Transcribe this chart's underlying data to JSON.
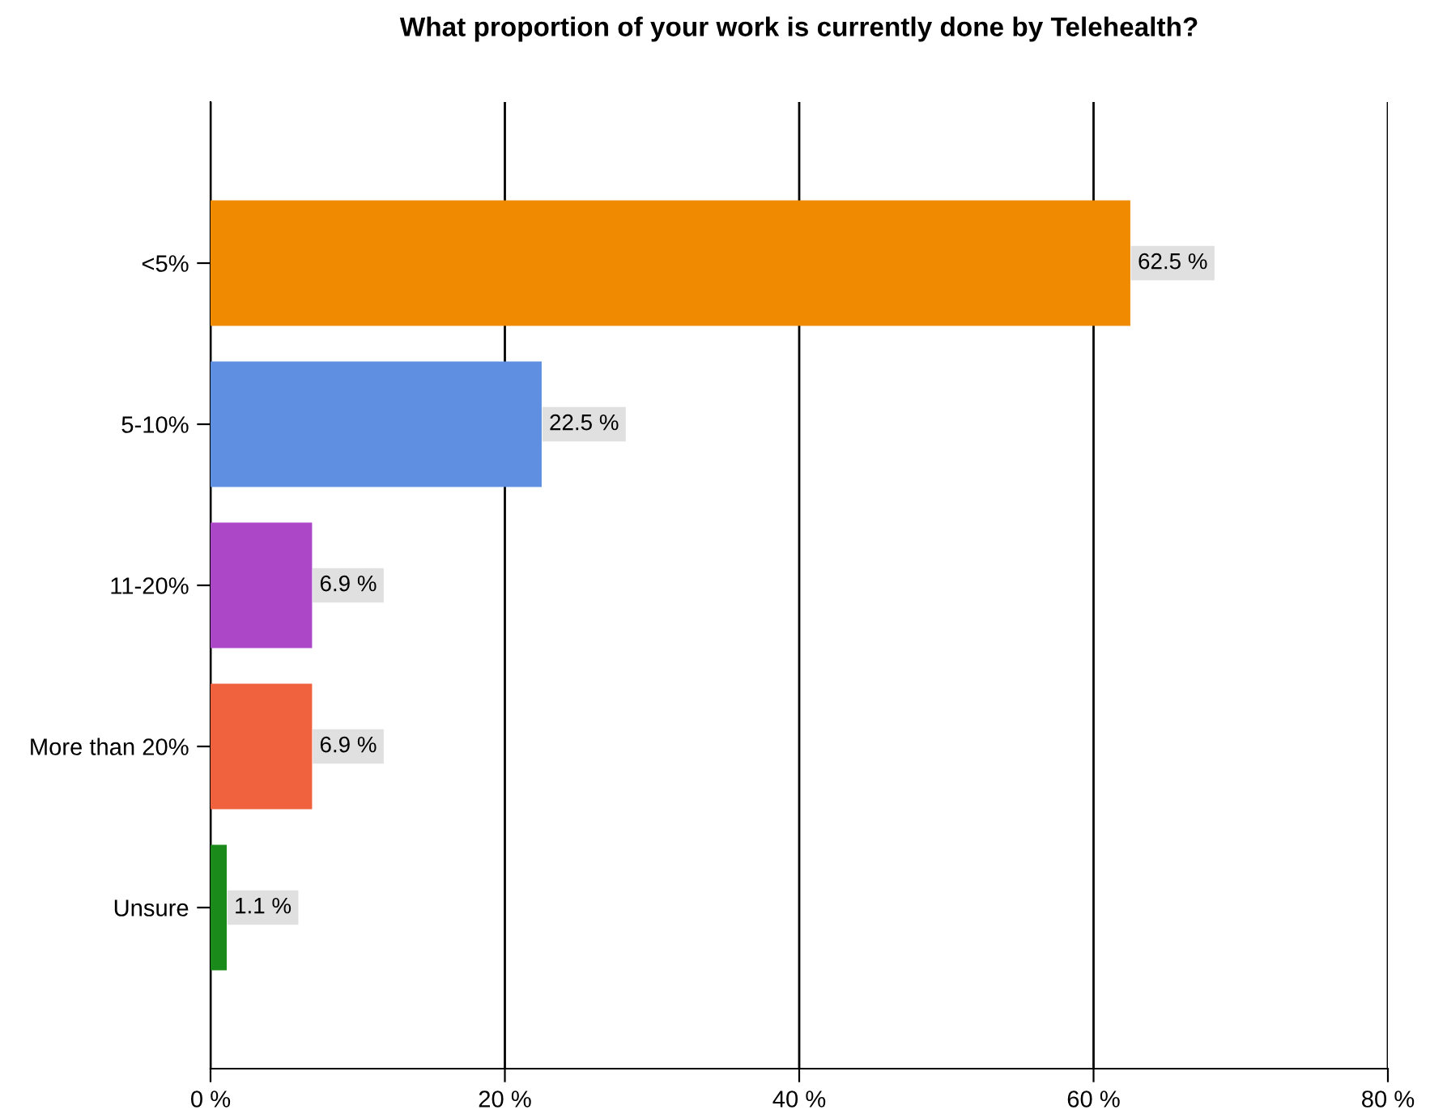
{
  "chart_data": {
    "type": "bar",
    "orientation": "horizontal",
    "title": "What proportion of your work is currently done by Telehealth?",
    "categories": [
      "<5%",
      "5-10%",
      "11-20%",
      "More than 20%",
      "Unsure"
    ],
    "values": [
      62.5,
      22.5,
      6.9,
      6.9,
      1.1
    ],
    "colors": [
      "#f08a00",
      "#5f8fe0",
      "#ac48c8",
      "#f0623e",
      "#1a8a1a"
    ],
    "value_labels": [
      "62.5 %",
      "22.5 %",
      "6.9 %",
      "6.9 %",
      "1.1 %"
    ],
    "xlim": [
      0,
      80
    ],
    "xticks": [
      {
        "value": 0,
        "label": "0 %"
      },
      {
        "value": 20,
        "label": "20 %"
      },
      {
        "value": 40,
        "label": "40 %"
      },
      {
        "value": 60,
        "label": "60 %"
      },
      {
        "value": 80,
        "label": "80 %"
      }
    ],
    "grid": "x",
    "legend": false
  }
}
